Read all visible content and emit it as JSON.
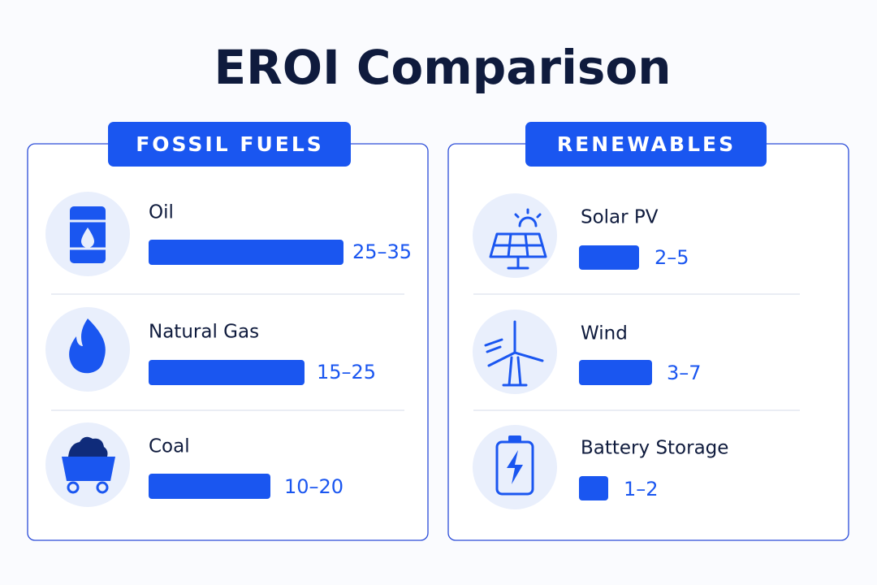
{
  "header": {
    "title": "EROI Comparison"
  },
  "panels": [
    {
      "title": "FOSSIL FUELS",
      "items": [
        {
          "name": "Oil",
          "range": "25–35"
        },
        {
          "name": "Natural Gas",
          "range": "15–25"
        },
        {
          "name": "Coal",
          "range": "10–20"
        }
      ]
    },
    {
      "title": "RENEWABLES",
      "items": [
        {
          "name": "Solar PV",
          "range": "2–5"
        },
        {
          "name": "Wind",
          "range": "3–7"
        },
        {
          "name": "Battery Storage",
          "range": "1–2"
        }
      ]
    }
  ]
}
